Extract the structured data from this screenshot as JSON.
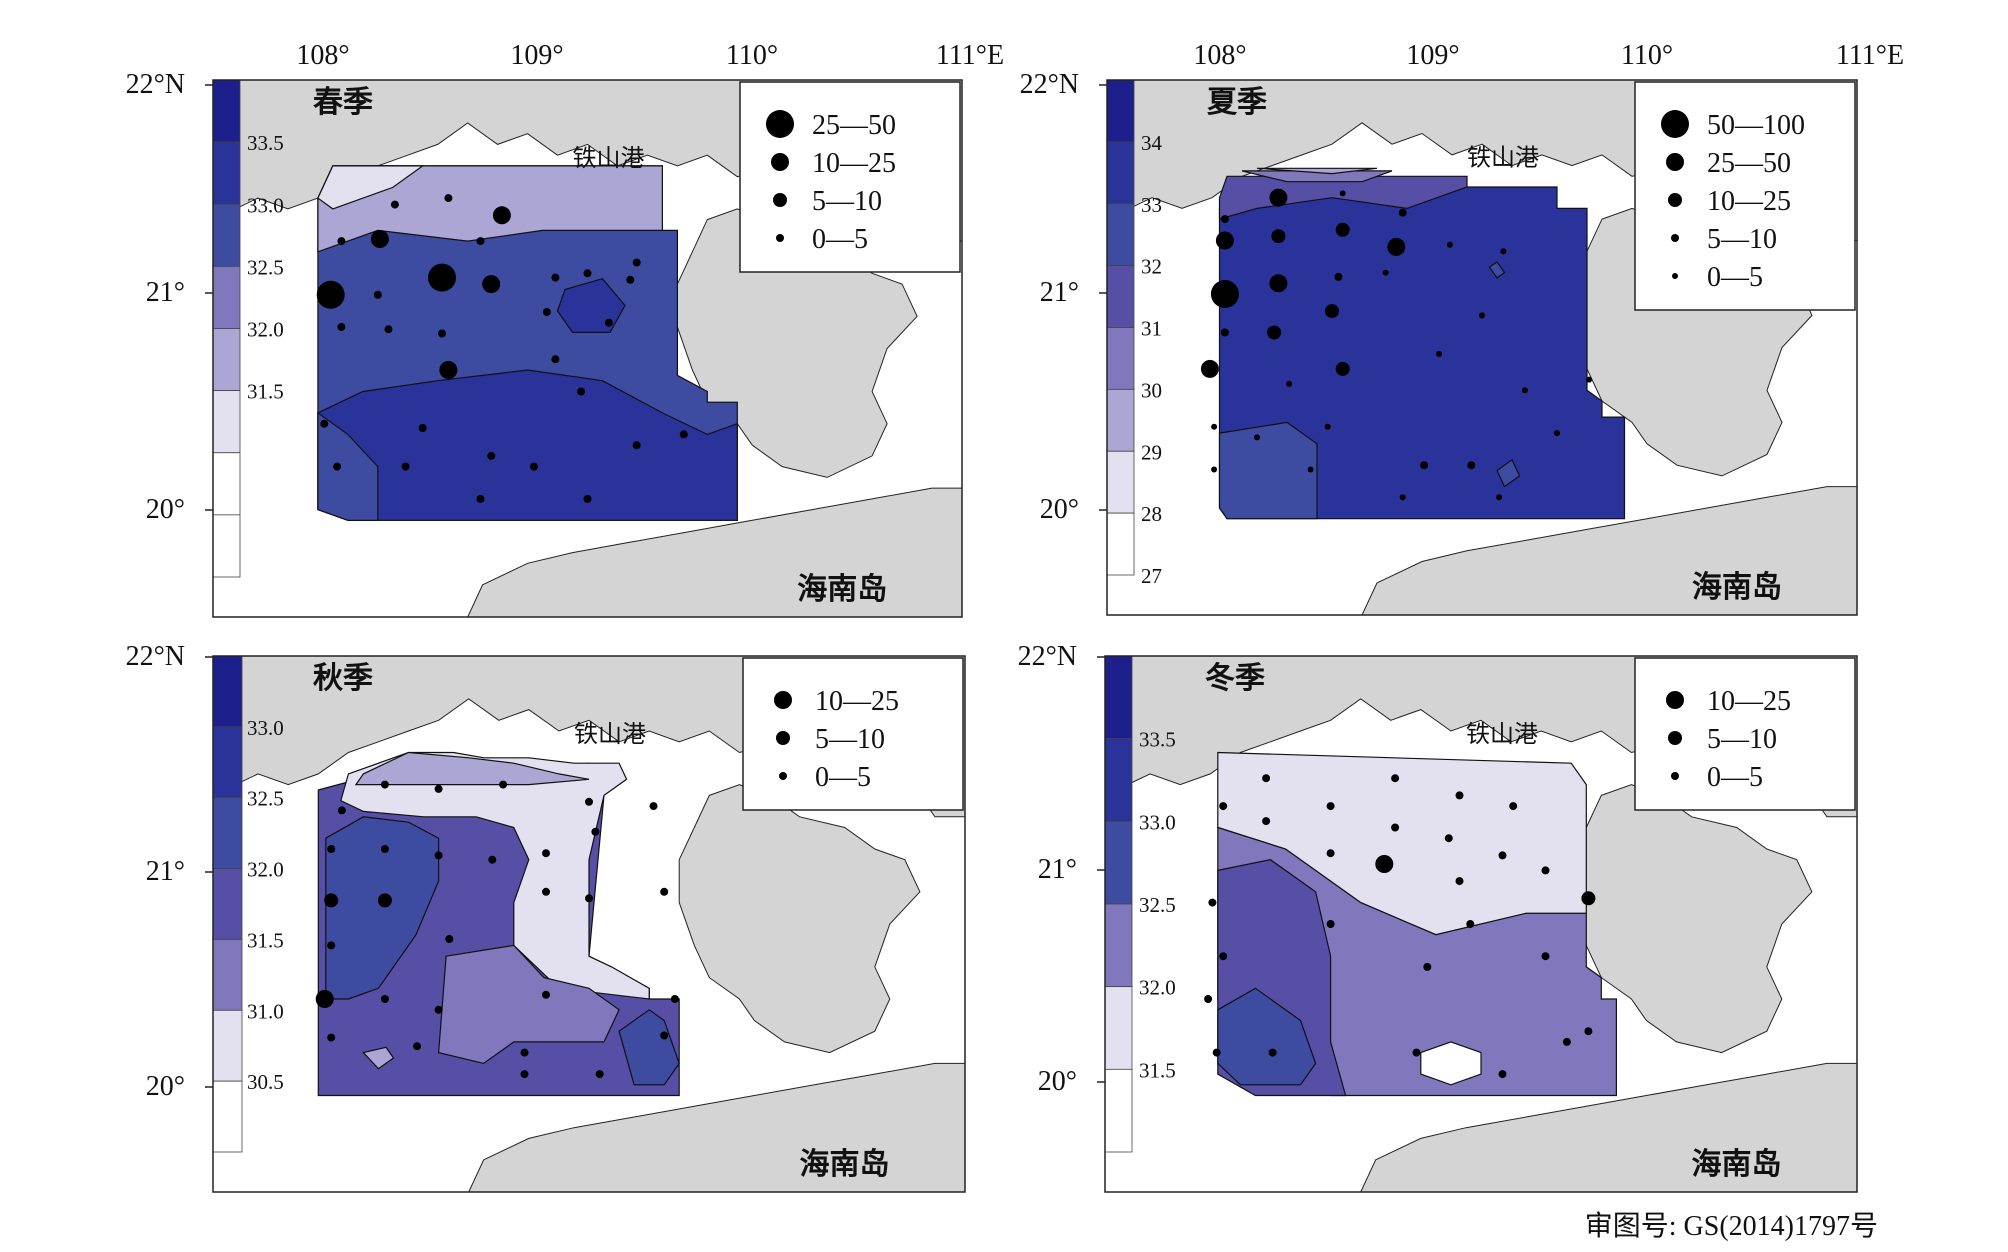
{
  "lon_labels": [
    "108°",
    "109°",
    "110°",
    "111°E"
  ],
  "lat_labels": [
    "22°N",
    "21°",
    "20°"
  ],
  "places": {
    "tieshan": "铁山港",
    "hainan": "海南岛"
  },
  "footer": "审图号: GS(2014)1797号",
  "colors": {
    "land": "#d4d4d4",
    "scale": [
      "#ffffff",
      "#e3e1f0",
      "#aca6d4",
      "#8077bc",
      "#574ea6",
      "#3d4ba0",
      "#29339a",
      "#1c1f8c"
    ]
  },
  "panels": [
    {
      "id": "spring",
      "season": "春季",
      "scale_labels": [
        "33.5",
        "33.0",
        "32.5",
        "32.0",
        "31.5"
      ],
      "legend": [
        {
          "label": "25—50",
          "size": "xl"
        },
        {
          "label": "10—25",
          "size": "l"
        },
        {
          "label": "5—10",
          "size": "m"
        },
        {
          "label": "0—5",
          "size": "s"
        }
      ],
      "points": [
        {
          "lon": 108.05,
          "lat": 21.0,
          "size": "xl"
        },
        {
          "lon": 108.28,
          "lat": 21.26,
          "size": "l"
        },
        {
          "lon": 108.57,
          "lat": 21.08,
          "size": "xl"
        },
        {
          "lon": 108.85,
          "lat": 21.37,
          "size": "l"
        },
        {
          "lon": 108.8,
          "lat": 21.05,
          "size": "l"
        },
        {
          "lon": 108.6,
          "lat": 20.65,
          "size": "l"
        },
        {
          "lon": 108.35,
          "lat": 21.42,
          "size": "s"
        },
        {
          "lon": 108.6,
          "lat": 21.45,
          "size": "s"
        },
        {
          "lon": 108.1,
          "lat": 21.25,
          "size": "s"
        },
        {
          "lon": 108.27,
          "lat": 21.0,
          "size": "s"
        },
        {
          "lon": 108.32,
          "lat": 20.84,
          "size": "s"
        },
        {
          "lon": 108.57,
          "lat": 20.82,
          "size": "s"
        },
        {
          "lon": 108.75,
          "lat": 21.25,
          "size": "s"
        },
        {
          "lon": 109.25,
          "lat": 21.1,
          "size": "s"
        },
        {
          "lon": 109.06,
          "lat": 20.92,
          "size": "s"
        },
        {
          "lon": 109.1,
          "lat": 21.08,
          "size": "s"
        },
        {
          "lon": 109.1,
          "lat": 20.7,
          "size": "s"
        },
        {
          "lon": 109.35,
          "lat": 20.87,
          "size": "s"
        },
        {
          "lon": 109.45,
          "lat": 21.07,
          "size": "s"
        },
        {
          "lon": 109.48,
          "lat": 21.15,
          "size": "s"
        },
        {
          "lon": 108.1,
          "lat": 20.85,
          "size": "s"
        },
        {
          "lon": 108.02,
          "lat": 20.4,
          "size": "s"
        },
        {
          "lon": 108.08,
          "lat": 20.2,
          "size": "s"
        },
        {
          "lon": 108.48,
          "lat": 20.38,
          "size": "s"
        },
        {
          "lon": 108.8,
          "lat": 20.25,
          "size": "s"
        },
        {
          "lon": 109.0,
          "lat": 20.2,
          "size": "s"
        },
        {
          "lon": 109.25,
          "lat": 20.05,
          "size": "s"
        },
        {
          "lon": 109.48,
          "lat": 20.3,
          "size": "s"
        },
        {
          "lon": 109.7,
          "lat": 20.35,
          "size": "s"
        },
        {
          "lon": 108.75,
          "lat": 20.05,
          "size": "s"
        },
        {
          "lon": 108.4,
          "lat": 20.2,
          "size": "s"
        },
        {
          "lon": 109.22,
          "lat": 20.55,
          "size": "s"
        }
      ]
    },
    {
      "id": "summer",
      "season": "夏季",
      "scale_labels": [
        "34",
        "33",
        "32",
        "31",
        "30",
        "29",
        "28",
        "27"
      ],
      "legend": [
        {
          "label": "50—100",
          "size": "xl"
        },
        {
          "label": "25—50",
          "size": "l"
        },
        {
          "label": "10—25",
          "size": "m"
        },
        {
          "label": "5—10",
          "size": "s"
        },
        {
          "label": "0—5",
          "size": "xs"
        }
      ],
      "points": [
        {
          "lon": 108.05,
          "lat": 21.0,
          "size": "xl"
        },
        {
          "lon": 108.3,
          "lat": 21.45,
          "size": "l"
        },
        {
          "lon": 108.05,
          "lat": 21.25,
          "size": "l"
        },
        {
          "lon": 108.3,
          "lat": 21.05,
          "size": "l"
        },
        {
          "lon": 108.85,
          "lat": 21.22,
          "size": "l"
        },
        {
          "lon": 107.98,
          "lat": 20.65,
          "size": "l"
        },
        {
          "lon": 108.3,
          "lat": 21.27,
          "size": "m"
        },
        {
          "lon": 108.6,
          "lat": 21.3,
          "size": "m"
        },
        {
          "lon": 108.55,
          "lat": 20.92,
          "size": "m"
        },
        {
          "lon": 108.6,
          "lat": 20.65,
          "size": "m"
        },
        {
          "lon": 108.28,
          "lat": 20.82,
          "size": "m"
        },
        {
          "lon": 108.05,
          "lat": 21.35,
          "size": "s"
        },
        {
          "lon": 108.05,
          "lat": 20.82,
          "size": "s"
        },
        {
          "lon": 108.58,
          "lat": 21.08,
          "size": "s"
        },
        {
          "lon": 108.88,
          "lat": 21.38,
          "size": "s"
        },
        {
          "lon": 108.98,
          "lat": 20.2,
          "size": "s"
        },
        {
          "lon": 109.2,
          "lat": 20.2,
          "size": "s"
        },
        {
          "lon": 108.6,
          "lat": 21.47,
          "size": "xs"
        },
        {
          "lon": 108.8,
          "lat": 21.1,
          "size": "xs"
        },
        {
          "lon": 109.1,
          "lat": 21.23,
          "size": "xs"
        },
        {
          "lon": 109.35,
          "lat": 21.2,
          "size": "xs"
        },
        {
          "lon": 109.25,
          "lat": 20.9,
          "size": "xs"
        },
        {
          "lon": 109.05,
          "lat": 20.72,
          "size": "xs"
        },
        {
          "lon": 109.45,
          "lat": 20.55,
          "size": "xs"
        },
        {
          "lon": 109.6,
          "lat": 20.35,
          "size": "xs"
        },
        {
          "lon": 109.75,
          "lat": 20.6,
          "size": "xs"
        },
        {
          "lon": 108.35,
          "lat": 20.58,
          "size": "xs"
        },
        {
          "lon": 108.0,
          "lat": 20.38,
          "size": "xs"
        },
        {
          "lon": 108.2,
          "lat": 20.33,
          "size": "xs"
        },
        {
          "lon": 108.45,
          "lat": 20.18,
          "size": "xs"
        },
        {
          "lon": 108.88,
          "lat": 20.05,
          "size": "xs"
        },
        {
          "lon": 109.33,
          "lat": 20.05,
          "size": "xs"
        },
        {
          "lon": 108.53,
          "lat": 20.38,
          "size": "xs"
        },
        {
          "lon": 108.0,
          "lat": 20.18,
          "size": "xs"
        }
      ]
    },
    {
      "id": "autumn",
      "season": "秋季",
      "scale_labels": [
        "33.0",
        "32.5",
        "32.0",
        "31.5",
        "31.0",
        "30.5"
      ],
      "legend": [
        {
          "label": "10—25",
          "size": "l"
        },
        {
          "label": "5—10",
          "size": "m"
        },
        {
          "label": "0—5",
          "size": "s"
        }
      ],
      "points": [
        {
          "lon": 108.05,
          "lat": 20.86,
          "size": "m"
        },
        {
          "lon": 108.3,
          "lat": 20.86,
          "size": "m"
        },
        {
          "lon": 108.02,
          "lat": 20.4,
          "size": "l"
        },
        {
          "lon": 108.3,
          "lat": 21.4,
          "size": "s"
        },
        {
          "lon": 108.55,
          "lat": 21.38,
          "size": "s"
        },
        {
          "lon": 108.85,
          "lat": 21.4,
          "size": "s"
        },
        {
          "lon": 109.25,
          "lat": 21.32,
          "size": "s"
        },
        {
          "lon": 109.55,
          "lat": 21.3,
          "size": "s"
        },
        {
          "lon": 108.1,
          "lat": 21.28,
          "size": "s"
        },
        {
          "lon": 108.3,
          "lat": 21.1,
          "size": "s"
        },
        {
          "lon": 108.55,
          "lat": 21.07,
          "size": "s"
        },
        {
          "lon": 108.8,
          "lat": 21.05,
          "size": "s"
        },
        {
          "lon": 109.05,
          "lat": 21.08,
          "size": "s"
        },
        {
          "lon": 109.28,
          "lat": 21.18,
          "size": "s"
        },
        {
          "lon": 109.05,
          "lat": 20.9,
          "size": "s"
        },
        {
          "lon": 109.25,
          "lat": 20.87,
          "size": "s"
        },
        {
          "lon": 109.6,
          "lat": 20.9,
          "size": "s"
        },
        {
          "lon": 108.6,
          "lat": 20.68,
          "size": "s"
        },
        {
          "lon": 108.05,
          "lat": 20.65,
          "size": "s"
        },
        {
          "lon": 108.3,
          "lat": 20.4,
          "size": "s"
        },
        {
          "lon": 108.55,
          "lat": 20.35,
          "size": "s"
        },
        {
          "lon": 108.45,
          "lat": 20.18,
          "size": "s"
        },
        {
          "lon": 108.95,
          "lat": 20.05,
          "size": "s"
        },
        {
          "lon": 109.3,
          "lat": 20.05,
          "size": "s"
        },
        {
          "lon": 109.6,
          "lat": 20.23,
          "size": "s"
        },
        {
          "lon": 109.65,
          "lat": 20.4,
          "size": "s"
        },
        {
          "lon": 108.05,
          "lat": 20.22,
          "size": "s"
        },
        {
          "lon": 109.05,
          "lat": 20.42,
          "size": "s"
        },
        {
          "lon": 108.95,
          "lat": 20.15,
          "size": "s"
        },
        {
          "lon": 108.05,
          "lat": 21.1,
          "size": "s"
        }
      ]
    },
    {
      "id": "winter",
      "season": "冬季",
      "scale_labels": [
        "33.5",
        "33.0",
        "32.5",
        "32.0",
        "31.5"
      ],
      "legend": [
        {
          "label": "10—25",
          "size": "l"
        },
        {
          "label": "5—10",
          "size": "m"
        },
        {
          "label": "0—5",
          "size": "s"
        }
      ],
      "points": [
        {
          "lon": 108.8,
          "lat": 21.03,
          "size": "l"
        },
        {
          "lon": 109.75,
          "lat": 20.87,
          "size": "m"
        },
        {
          "lon": 108.25,
          "lat": 21.43,
          "size": "s"
        },
        {
          "lon": 108.55,
          "lat": 21.3,
          "size": "s"
        },
        {
          "lon": 108.85,
          "lat": 21.43,
          "size": "s"
        },
        {
          "lon": 109.15,
          "lat": 21.35,
          "size": "s"
        },
        {
          "lon": 109.4,
          "lat": 21.3,
          "size": "s"
        },
        {
          "lon": 108.05,
          "lat": 21.3,
          "size": "s"
        },
        {
          "lon": 108.25,
          "lat": 21.23,
          "size": "s"
        },
        {
          "lon": 108.55,
          "lat": 21.08,
          "size": "s"
        },
        {
          "lon": 108.85,
          "lat": 21.2,
          "size": "s"
        },
        {
          "lon": 109.1,
          "lat": 21.15,
          "size": "s"
        },
        {
          "lon": 109.35,
          "lat": 21.07,
          "size": "s"
        },
        {
          "lon": 109.55,
          "lat": 21.0,
          "size": "s"
        },
        {
          "lon": 109.15,
          "lat": 20.95,
          "size": "s"
        },
        {
          "lon": 108.0,
          "lat": 20.85,
          "size": "s"
        },
        {
          "lon": 108.55,
          "lat": 20.75,
          "size": "s"
        },
        {
          "lon": 109.2,
          "lat": 20.75,
          "size": "s"
        },
        {
          "lon": 109.55,
          "lat": 20.6,
          "size": "s"
        },
        {
          "lon": 107.98,
          "lat": 20.4,
          "size": "s"
        },
        {
          "lon": 108.02,
          "lat": 20.15,
          "size": "s"
        },
        {
          "lon": 108.28,
          "lat": 20.15,
          "size": "s"
        },
        {
          "lon": 108.95,
          "lat": 20.15,
          "size": "s"
        },
        {
          "lon": 109.35,
          "lat": 20.05,
          "size": "s"
        },
        {
          "lon": 109.65,
          "lat": 20.2,
          "size": "s"
        },
        {
          "lon": 109.75,
          "lat": 20.25,
          "size": "s"
        },
        {
          "lon": 108.05,
          "lat": 20.6,
          "size": "s"
        },
        {
          "lon": 109.0,
          "lat": 20.55,
          "size": "s"
        }
      ]
    }
  ]
}
